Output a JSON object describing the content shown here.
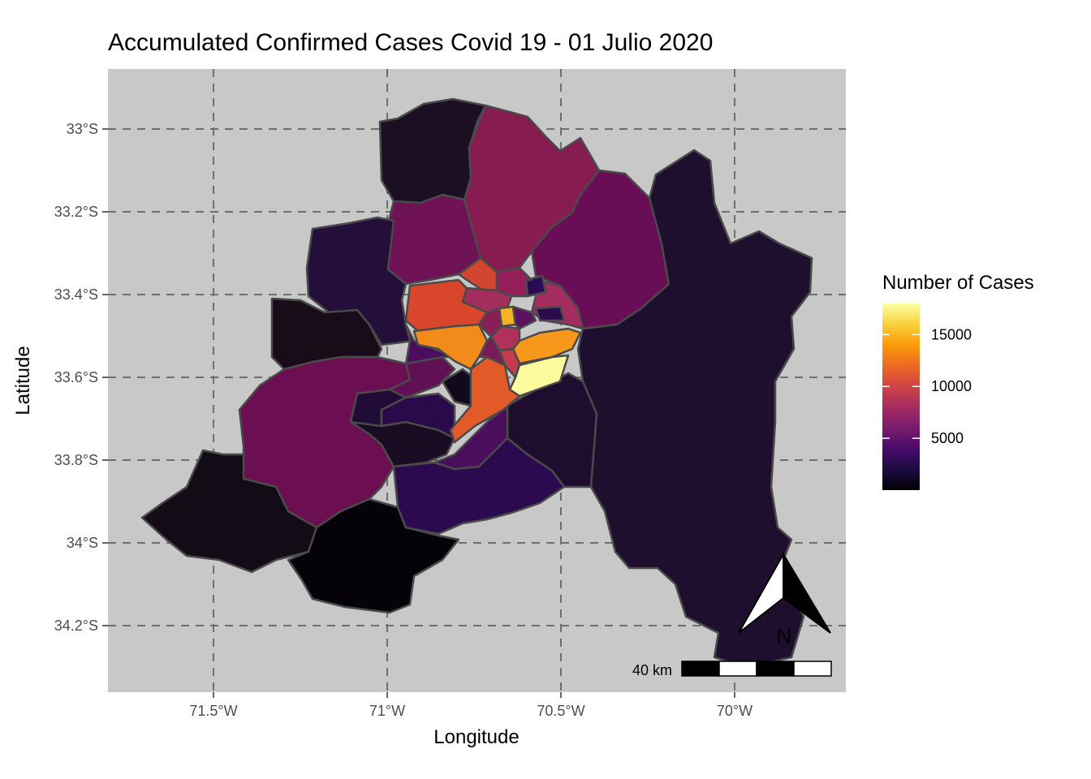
{
  "title": "Accumulated Confirmed Cases Covid 19 - 01 Julio 2020",
  "x_axis": {
    "label": "Longitude",
    "ticks": [
      {
        "value": -71.5,
        "label": "71.5°W"
      },
      {
        "value": -71.0,
        "label": "71°W"
      },
      {
        "value": -70.5,
        "label": "70.5°W"
      },
      {
        "value": -70.0,
        "label": "70°W"
      }
    ]
  },
  "y_axis": {
    "label": "Latitude",
    "ticks": [
      {
        "value": -33.0,
        "label": "33°S"
      },
      {
        "value": -33.2,
        "label": "33.2°S"
      },
      {
        "value": -33.4,
        "label": "33.4°S"
      },
      {
        "value": -33.6,
        "label": "33.6°S"
      },
      {
        "value": -33.8,
        "label": "33.8°S"
      },
      {
        "value": -34.0,
        "label": "34°S"
      },
      {
        "value": -34.2,
        "label": "34.2°S"
      }
    ]
  },
  "legend": {
    "title": "Number of Cases",
    "range": [
      0,
      18000
    ],
    "ticks": [
      {
        "value": 5000,
        "label": "5000"
      },
      {
        "value": 10000,
        "label": "10000"
      },
      {
        "value": 15000,
        "label": "15000"
      }
    ],
    "colors": [
      "#000004",
      "#1b0c41",
      "#4a0c6b",
      "#781c6d",
      "#a52c60",
      "#cf4446",
      "#ed6925",
      "#fb9b06",
      "#f7d13d",
      "#fcffa4"
    ]
  },
  "scale_bar": {
    "label": "40 km"
  },
  "north_arrow": {
    "label": "N"
  },
  "colors": {
    "panel_background": "#c8c8c8",
    "border": "#4a4a4a",
    "grid": "#6e6e6e"
  }
}
